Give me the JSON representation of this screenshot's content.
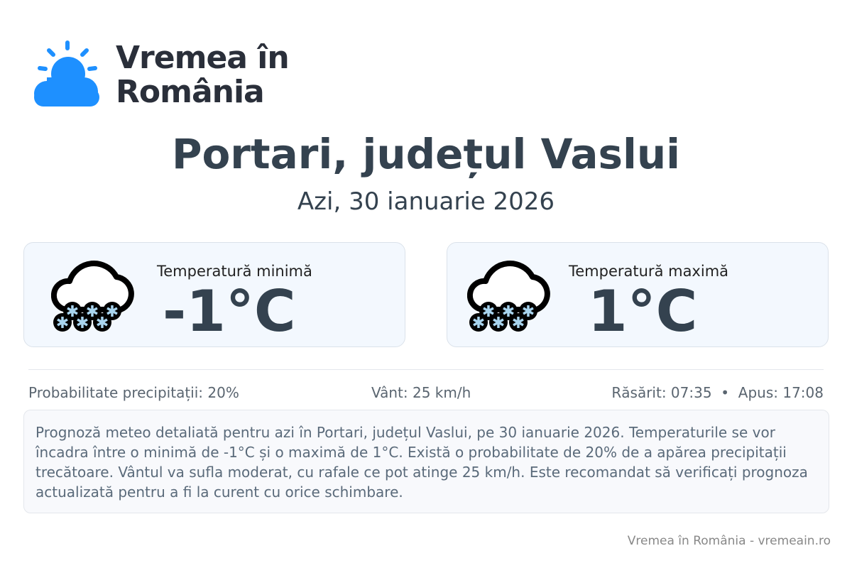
{
  "brand": {
    "name_line1": "Vremea în",
    "name_line2": "România",
    "accent": "#1e90ff"
  },
  "header": {
    "title": "Portari, județul Vaslui",
    "date": "Azi, 30 ianuarie 2026"
  },
  "cards": [
    {
      "label": "Temperatură minimă",
      "value": "-1°C",
      "icon": "snow-cloud-icon"
    },
    {
      "label": "Temperatură maximă",
      "value": "1°C",
      "icon": "snow-cloud-icon"
    }
  ],
  "info": {
    "precipitation": "Probabilitate precipitații: 20%",
    "wind": "Vânt: 25 km/h",
    "sun": "Răsărit: 07:35  •  Apus: 17:08"
  },
  "description": "Prognoză meteo detaliată pentru azi în Portari, județul Vaslui, pe 30 ianuarie 2026. Temperaturile se vor încadra între o minimă de -1°C și o maximă de 1°C. Există o probabilitate de 20% de a apărea precipitații trecătoare. Vântul va sufla moderat, cu rafale ce pot atinge 25 km/h. Este recomandat să verificați prognoza actualizată pentru a fi la curent cu orice schimbare.",
  "footer": "Vremea în România - vremeain.ro"
}
